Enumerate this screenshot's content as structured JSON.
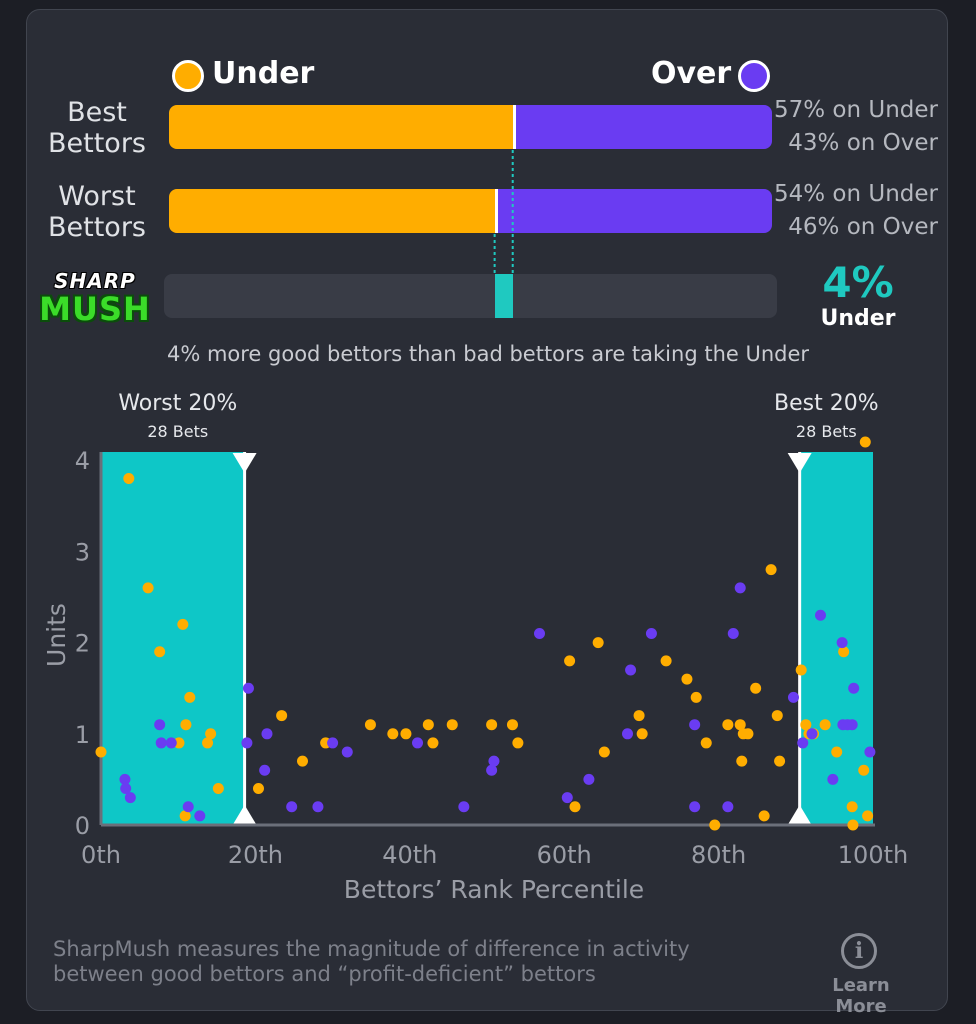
{
  "legend": {
    "under_label": "Under",
    "over_label": "Over",
    "under_color": "#ffad00",
    "over_color": "#6a3cf2"
  },
  "rows": [
    {
      "label_line1": "Best",
      "label_line2": "Bettors",
      "under_pct": 57,
      "over_pct": 43,
      "under_text": "57% on Under",
      "over_text": "43% on Over"
    },
    {
      "label_line1": "Worst",
      "label_line2": "Bettors",
      "under_pct": 54,
      "over_pct": 46,
      "under_text": "54% on Under",
      "over_text": "46% on Over"
    }
  ],
  "sharpmush": {
    "logo_top": "SHARP",
    "logo_bottom": "MUSH",
    "value": "4%",
    "direction": "Under",
    "accent_color": "#1fc9c0",
    "summary": "4% more good bettors than bad bettors are taking the Under"
  },
  "chart_data": {
    "type": "scatter",
    "xlabel": "Bettors’ Rank Percentile",
    "ylabel": "Units",
    "xlim": [
      0,
      100
    ],
    "ylim": [
      0,
      4.2
    ],
    "x_ticks": [
      {
        "value": 0,
        "label": "0th"
      },
      {
        "value": 20,
        "label": "20th"
      },
      {
        "value": 40,
        "label": "40th"
      },
      {
        "value": 60,
        "label": "60th"
      },
      {
        "value": 80,
        "label": "80th"
      },
      {
        "value": 100,
        "label": "100th"
      }
    ],
    "y_ticks": [
      {
        "value": 0,
        "label": "0"
      },
      {
        "value": 1,
        "label": "1"
      },
      {
        "value": 2,
        "label": "2"
      },
      {
        "value": 3,
        "label": "3"
      },
      {
        "value": 4,
        "label": "4"
      }
    ],
    "highlight_bands": [
      {
        "name": "worst",
        "title": "Worst 20%",
        "subtitle": "28 Bets",
        "x0": 0,
        "x1": 18.6
      },
      {
        "name": "best",
        "title": "Best 20%",
        "subtitle": "28 Bets",
        "x0": 90.5,
        "x1": 100
      }
    ],
    "series": [
      {
        "name": "Under",
        "color": "#ffad00",
        "points": [
          [
            0,
            0.8
          ],
          [
            3.6,
            3.8
          ],
          [
            6.1,
            2.6
          ],
          [
            7.6,
            1.9
          ],
          [
            10.6,
            2.2
          ],
          [
            11.5,
            1.4
          ],
          [
            11.0,
            1.1
          ],
          [
            10.1,
            0.9
          ],
          [
            13.8,
            0.9
          ],
          [
            14.2,
            1.0
          ],
          [
            15.2,
            0.4
          ],
          [
            10.9,
            0.1
          ],
          [
            20.4,
            0.4
          ],
          [
            23.4,
            1.2
          ],
          [
            26.1,
            0.7
          ],
          [
            29.1,
            0.9
          ],
          [
            34.9,
            1.1
          ],
          [
            37.8,
            1.0
          ],
          [
            39.5,
            1.0
          ],
          [
            42.4,
            1.1
          ],
          [
            43.0,
            0.9
          ],
          [
            45.5,
            1.1
          ],
          [
            50.6,
            1.1
          ],
          [
            53.3,
            1.1
          ],
          [
            54.0,
            0.9
          ],
          [
            60.7,
            1.8
          ],
          [
            61.4,
            0.2
          ],
          [
            64.4,
            2.0
          ],
          [
            65.2,
            0.8
          ],
          [
            69.7,
            1.2
          ],
          [
            70.1,
            1.0
          ],
          [
            73.2,
            1.8
          ],
          [
            75.9,
            1.6
          ],
          [
            77.1,
            1.4
          ],
          [
            78.4,
            0.9
          ],
          [
            79.5,
            0.0
          ],
          [
            81.2,
            1.1
          ],
          [
            82.8,
            1.1
          ],
          [
            83.2,
            1.0
          ],
          [
            83.0,
            0.7
          ],
          [
            83.8,
            1.0
          ],
          [
            84.8,
            1.5
          ],
          [
            85.9,
            0.1
          ],
          [
            86.8,
            2.8
          ],
          [
            87.6,
            1.2
          ],
          [
            87.9,
            0.7
          ],
          [
            90.7,
            1.7
          ],
          [
            91.3,
            1.1
          ],
          [
            91.7,
            1.0
          ],
          [
            92.3,
            1.0
          ],
          [
            93.8,
            1.1
          ],
          [
            95.3,
            0.8
          ],
          [
            96.2,
            1.9
          ],
          [
            97.3,
            0.2
          ],
          [
            97.4,
            0.0
          ],
          [
            99.0,
            4.2
          ],
          [
            98.8,
            0.6
          ],
          [
            99.3,
            0.1
          ]
        ]
      },
      {
        "name": "Over",
        "color": "#6a3cf2",
        "points": [
          [
            3.1,
            0.5
          ],
          [
            3.2,
            0.4
          ],
          [
            3.8,
            0.3
          ],
          [
            7.6,
            1.1
          ],
          [
            7.8,
            0.9
          ],
          [
            9.1,
            0.9
          ],
          [
            11.3,
            0.2
          ],
          [
            12.8,
            0.1
          ],
          [
            18.9,
            0.9
          ],
          [
            19.1,
            1.5
          ],
          [
            21.2,
            0.6
          ],
          [
            21.5,
            1.0
          ],
          [
            24.7,
            0.2
          ],
          [
            28.1,
            0.2
          ],
          [
            30.0,
            0.9
          ],
          [
            31.9,
            0.8
          ],
          [
            41.0,
            0.9
          ],
          [
            47.0,
            0.2
          ],
          [
            50.6,
            0.6
          ],
          [
            50.9,
            0.7
          ],
          [
            56.8,
            2.1
          ],
          [
            60.4,
            0.3
          ],
          [
            63.2,
            0.5
          ],
          [
            68.2,
            1.0
          ],
          [
            68.6,
            1.7
          ],
          [
            71.3,
            2.1
          ],
          [
            76.9,
            1.1
          ],
          [
            76.9,
            0.2
          ],
          [
            81.2,
            0.2
          ],
          [
            81.9,
            2.1
          ],
          [
            82.8,
            2.6
          ],
          [
            89.7,
            1.4
          ],
          [
            90.9,
            0.9
          ],
          [
            92.1,
            1.0
          ],
          [
            93.2,
            2.3
          ],
          [
            94.8,
            0.5
          ],
          [
            96.0,
            2.0
          ],
          [
            96.1,
            1.1
          ],
          [
            96.7,
            1.1
          ],
          [
            97.3,
            1.1
          ],
          [
            97.5,
            1.5
          ],
          [
            99.6,
            0.8
          ]
        ]
      }
    ]
  },
  "footer": {
    "line1": "SharpMush measures the magnitude of difference in activity",
    "line2": "between good bettors and “profit-deficient” bettors",
    "learn_more": "Learn More",
    "info_glyph": "i"
  }
}
